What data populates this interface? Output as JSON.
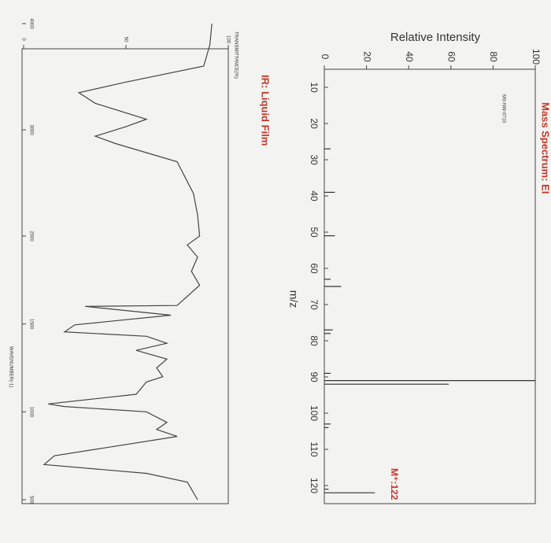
{
  "chart_data": [
    {
      "type": "bar",
      "title": "Mass Spectrum: EI",
      "code": "MS-NW-0710",
      "y_label": "Relative Intensity",
      "x_label": "m/z",
      "annotation": "M⁺:122",
      "x": [
        27,
        39,
        51,
        63,
        65,
        77,
        78,
        89,
        91,
        92,
        103,
        104,
        121,
        122
      ],
      "values": [
        3,
        5,
        5,
        3,
        8,
        4,
        3,
        3,
        100,
        59,
        3,
        2,
        2,
        24
      ],
      "color": "#333333",
      "xlim": [
        5,
        125
      ],
      "xticks": [
        10,
        20,
        30,
        40,
        50,
        60,
        70,
        80,
        90,
        100,
        110,
        120
      ],
      "ylim": [
        0,
        100
      ],
      "yticks": [
        0,
        20,
        40,
        60,
        80,
        100
      ]
    },
    {
      "type": "line",
      "title": "IR: Liquid Film",
      "y_label": "TRANSMITTANCE(%)",
      "x_label": "WAVENUMBER(-1)",
      "x": [
        4000,
        3800,
        3600,
        3450,
        3350,
        3250,
        3100,
        3030,
        2940,
        2870,
        2700,
        2400,
        2200,
        2000,
        1950,
        1880,
        1800,
        1720,
        1605,
        1600,
        1550,
        1495,
        1455,
        1430,
        1390,
        1350,
        1300,
        1250,
        1200,
        1170,
        1100,
        1045,
        1030,
        1000,
        940,
        900,
        860,
        750,
        700,
        650,
        600,
        500
      ],
      "values": [
        92,
        91,
        88,
        50,
        27,
        35,
        60,
        50,
        35,
        45,
        75,
        83,
        85,
        86,
        80,
        85,
        82,
        86,
        75,
        30,
        72,
        25,
        20,
        60,
        70,
        55,
        70,
        65,
        68,
        60,
        55,
        12,
        20,
        60,
        70,
        65,
        75,
        15,
        10,
        60,
        80,
        85
      ],
      "color": "#444444",
      "xlim": [
        4000,
        500
      ],
      "xticks": [
        4000,
        3000,
        2000,
        1500,
        1000,
        500
      ],
      "ylim": [
        0,
        100
      ],
      "yticks": [
        0,
        50,
        100
      ]
    }
  ]
}
